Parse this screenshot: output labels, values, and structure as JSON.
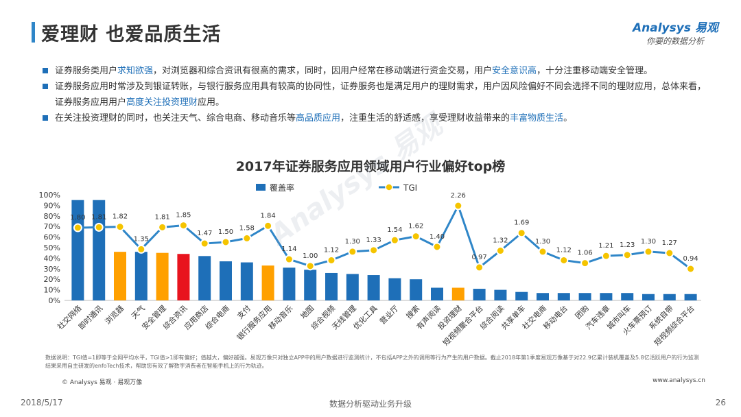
{
  "header": {
    "title": "爱理财 也爱品质生活",
    "logo_brand": "Analysys 易观",
    "logo_tagline": "你要的数据分析"
  },
  "bullets": [
    [
      {
        "t": "证券服务类用户"
      },
      {
        "t": "求知欲强",
        "hl": true
      },
      {
        "t": "，对浏览器和综合资讯有很高的需求，同时，因用户经常在移动端进行资金交易，用户"
      },
      {
        "t": "安全意识高",
        "hl": true
      },
      {
        "t": "，十分注重移动端安全管理。"
      }
    ],
    [
      {
        "t": "证券服务应用时常涉及到银证转账，与银行服务应用具有较高的协同性，证券服务也是满足用户的理财需求，用户因风险偏好不同会选择不同的理财应用，总体来看，证券服务应用用户"
      },
      {
        "t": "高度关注投资理财",
        "hl": true
      },
      {
        "t": "应用。"
      }
    ],
    [
      {
        "t": "在关注投资理财的同时，也关注天气、综合电商、移动音乐等"
      },
      {
        "t": "高品质应用",
        "hl": true
      },
      {
        "t": "，注重生活的舒适感，享受理财收益带来的"
      },
      {
        "t": "丰富物质生活",
        "hl": true
      },
      {
        "t": "。"
      }
    ]
  ],
  "colors": {
    "bar_default": "#1e6fb8",
    "bar_orange": "#ffa000",
    "bar_red": "#e8141e",
    "line": "#2f86c8",
    "marker_fill": "#f5c400",
    "marker_stroke": "#ffffff",
    "accent": "#2f86c8"
  },
  "chart_data": {
    "type": "bar+line",
    "title": "2017年证券服务应用领域用户行业偏好top榜",
    "legend": [
      {
        "name": "覆盖率",
        "type": "bar"
      },
      {
        "name": "TGI",
        "type": "line"
      }
    ],
    "legend_position": "top-center",
    "categories": [
      "社交网络",
      "即时通讯",
      "浏览器",
      "天气",
      "安全管理",
      "综合资讯",
      "应用商店",
      "综合电商",
      "支付",
      "银行服务应用",
      "移动音乐",
      "地图",
      "综合视频",
      "无线管理",
      "优化工具",
      "营业厅",
      "搜索",
      "有声阅读",
      "投资理财",
      "短视频聚合平台",
      "综合阅读",
      "共享单车",
      "社交电商",
      "移动电台",
      "团购",
      "汽车违章",
      "城市叫车",
      "火车票预订",
      "系统自带",
      "短视频综合平台"
    ],
    "series": [
      {
        "name": "覆盖率",
        "type": "bar",
        "axis": "left",
        "values": [
          95,
          95,
          46,
          46,
          45,
          44,
          42,
          37,
          36,
          33,
          31,
          29,
          26,
          25,
          24,
          21,
          20,
          12,
          12,
          11,
          10,
          8,
          7,
          7,
          7,
          7,
          7,
          6,
          6,
          6
        ],
        "bar_colors": [
          "default",
          "default",
          "orange",
          "default",
          "orange",
          "red",
          "default",
          "default",
          "default",
          "orange",
          "default",
          "default",
          "default",
          "default",
          "default",
          "default",
          "default",
          "default",
          "orange",
          "default",
          "default",
          "default",
          "default",
          "default",
          "default",
          "default",
          "default",
          "default",
          "default",
          "default"
        ]
      },
      {
        "name": "TGI",
        "type": "line",
        "axis": "right",
        "values": [
          1.8,
          1.81,
          1.82,
          1.35,
          1.81,
          1.85,
          1.47,
          1.5,
          1.58,
          1.84,
          1.14,
          1.0,
          1.12,
          1.3,
          1.33,
          1.54,
          1.62,
          1.4,
          2.26,
          0.97,
          1.32,
          1.69,
          1.3,
          1.12,
          1.06,
          1.21,
          1.23,
          1.3,
          1.27,
          0.94
        ],
        "labels": [
          "1.80",
          "1.81",
          "1.82",
          "1.35",
          "1.81",
          "1.85",
          "1.47",
          "1.50",
          "1.58",
          "1.84",
          "1.14",
          "1.00",
          "1.12",
          "1.30",
          "1.33",
          "1.54",
          "1.62",
          "1.40",
          "2.26",
          "0.97",
          "1.32",
          "1.69",
          "1.30",
          "1.12",
          "1.06",
          "1.21",
          "1.23",
          "1.30",
          "1.27",
          "0.94"
        ]
      }
    ],
    "y_ticks": [
      "100%",
      "90%",
      "80%",
      "70%",
      "60%",
      "50%",
      "40%",
      "30%",
      "20%",
      "10%",
      "0%"
    ],
    "ylim": [
      0,
      100
    ],
    "tgi_range": [
      0.5,
      2.5
    ],
    "grid": false
  },
  "note": "数据说明：TGI值=1即等于全网平均水平，TGI值>1即有偏好；值越大，偏好越强。易观万像只对独立APP中的用户数据进行监测统计，不包括APP之外的调用等行为产生的用户数据。截止2018年第1季度易观万像基于对22.9亿累计装机覆盖及5.8亿活跃用户的行为监测结果采用自主研发的enfoTech技术，帮助您有效了解数字消费者在智能手机上的行为轨迹。",
  "copyright": "© Analysys 易观 · 易观万像",
  "website": "www.analysys.cn",
  "footer": {
    "date": "2018/5/17",
    "center": "数据分析驱动业务升级",
    "page": "26"
  },
  "watermark": "Analysys 易观"
}
